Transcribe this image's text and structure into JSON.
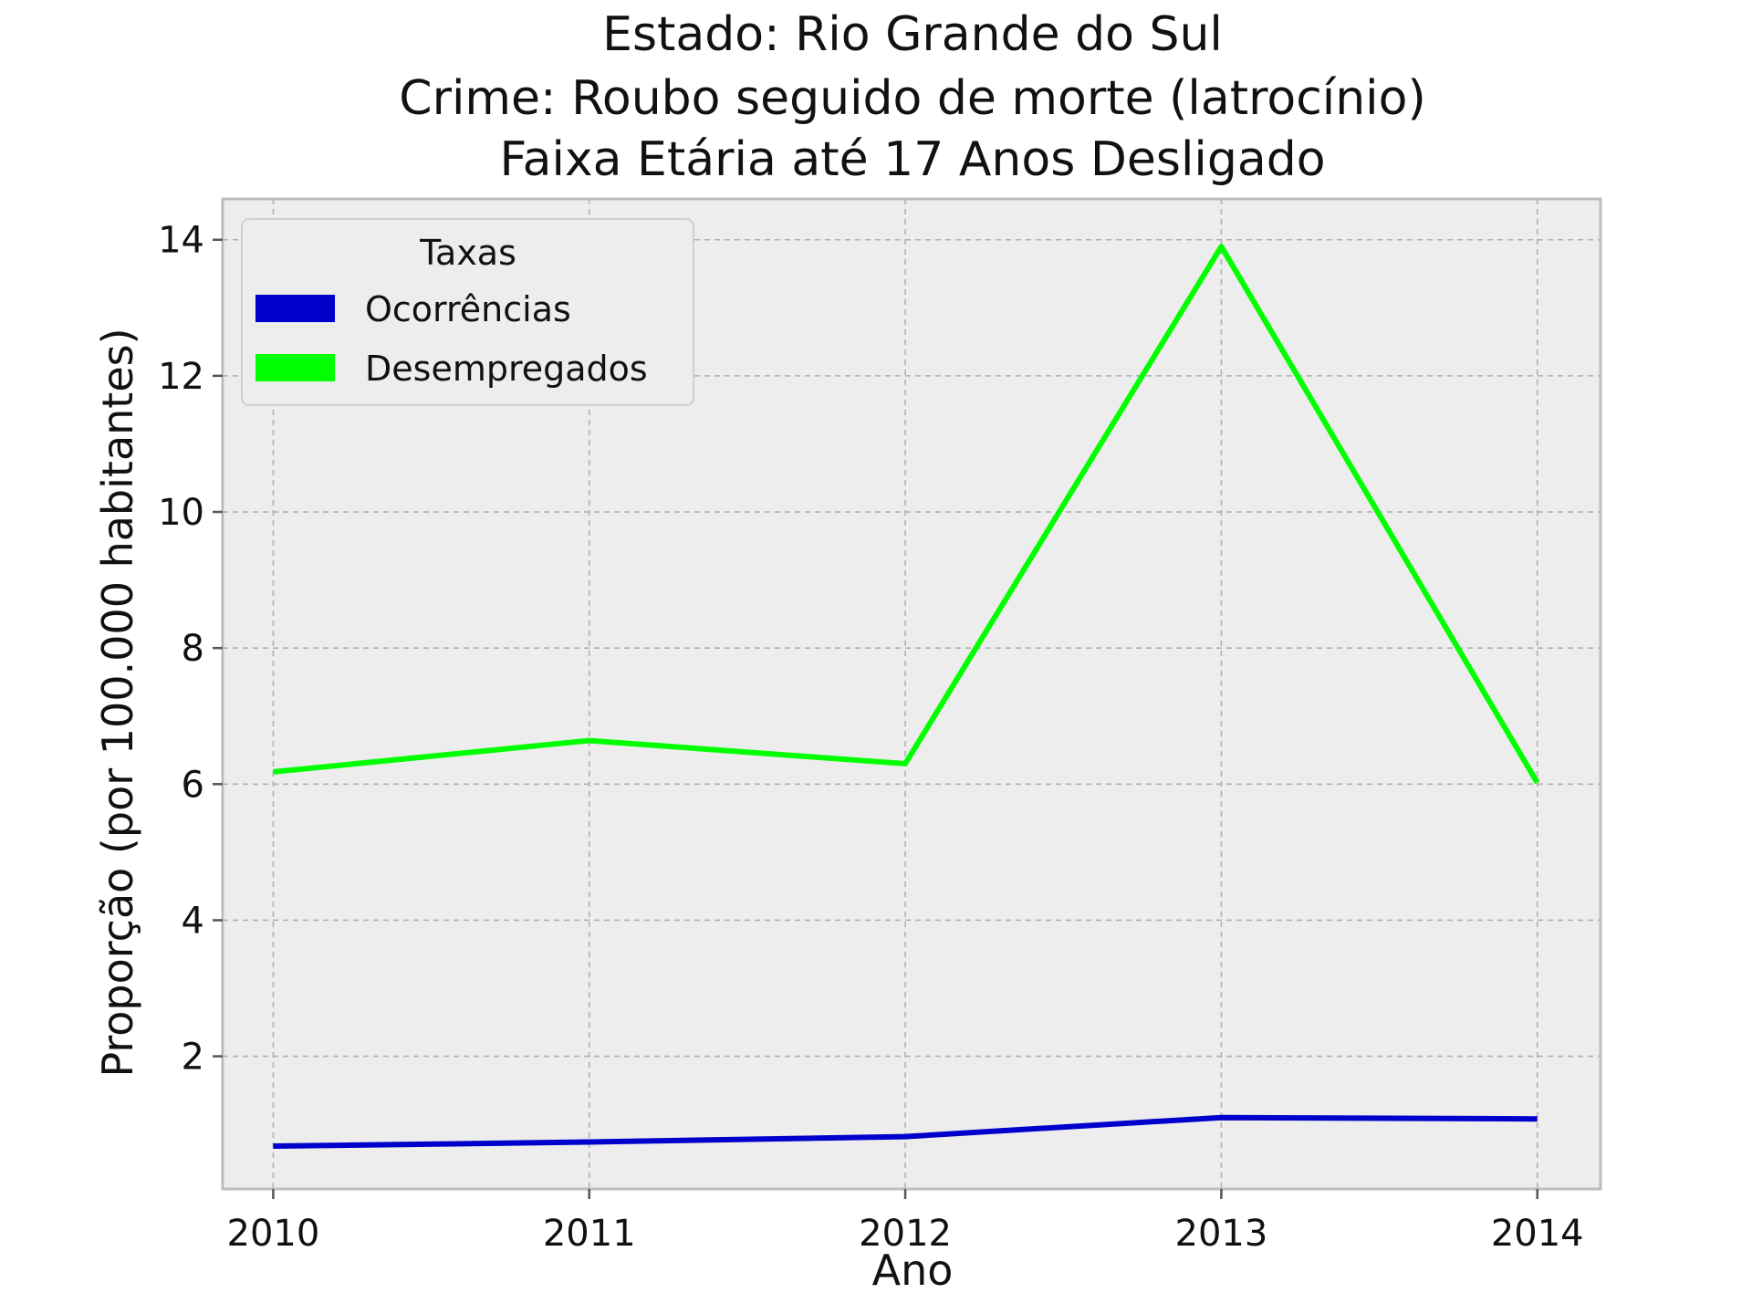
{
  "chart_data": {
    "type": "line",
    "title_lines": [
      "Estado: Rio Grande do Sul",
      "Crime: Roubo seguido de morte (latrocínio)",
      "Faixa Etária até 17 Anos   Desligado"
    ],
    "xlabel": "Ano",
    "ylabel": "Proporção (por 100.000 habitantes)",
    "x": [
      2010,
      2011,
      2012,
      2013,
      2014
    ],
    "x_tick_labels": [
      "2010",
      "2011",
      "2012",
      "2013",
      "2014"
    ],
    "y_ticks": [
      2,
      4,
      6,
      8,
      10,
      12,
      14
    ],
    "y_tick_labels": [
      "2",
      "4",
      "6",
      "8",
      "10",
      "12",
      "14"
    ],
    "xlim": [
      2009.84,
      2014.2
    ],
    "ylim": [
      0.05,
      14.6
    ],
    "grid": true,
    "legend": {
      "title": "Taxas",
      "placement": "top-left"
    },
    "series": [
      {
        "name": "Ocorrências",
        "color": "#0000cc",
        "values": [
          0.68,
          0.74,
          0.82,
          1.1,
          1.08
        ]
      },
      {
        "name": "Desempregados",
        "color": "#00ff00",
        "values": [
          6.18,
          6.64,
          6.3,
          13.9,
          6.02
        ]
      }
    ],
    "colors": {
      "plot_background": "#ededed",
      "grid": "#b0b0b0",
      "frame": "#bdbdbd"
    }
  }
}
